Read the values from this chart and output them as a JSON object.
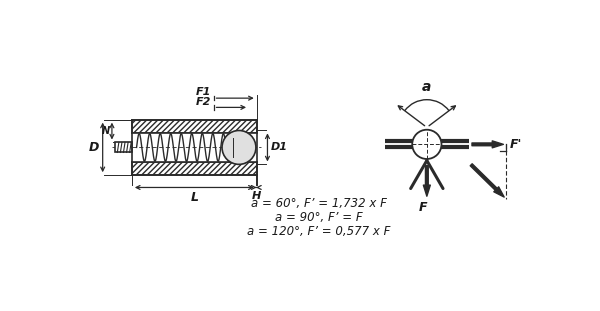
{
  "bg_color": "#ffffff",
  "line_color": "#2a2a2a",
  "text_color": "#1a1a1a",
  "formula_lines": [
    "a = 60°, F’ = 1,732 x F",
    "a = 90°, F’ = F",
    "a = 120°, F’ = 0,577 x F"
  ]
}
